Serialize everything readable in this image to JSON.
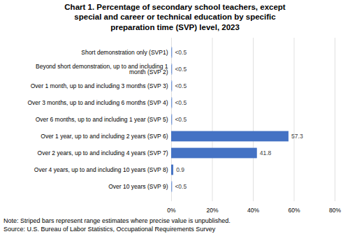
{
  "chart_data": {
    "type": "bar",
    "orientation": "horizontal",
    "title": "Chart 1. Percentage of secondary school teachers, except\nspecial and career or technical education by specific\npreparation time (SVP) level, 2023",
    "categories": [
      "Short demonstration only (SVP1)",
      "Beyond short demonstration, up to and including 1\nmonth (SVP 2)",
      "Over 1 month, up to and including 3 months (SVP 3)",
      "Over 3 months, up to and including 6 months (SVP 4)",
      "Over 6 months, up to and including 1 year (SVP 5)",
      "Over 1 year, up to and including 2 years (SVP 6)",
      "Over 2 years, up to and including 4 years (SVP 7)",
      "Over 4 years, up to and including 10 years (SVP 8)",
      "Over 10 years (SVP 9)"
    ],
    "values": [
      0.3,
      0.3,
      0.3,
      0.3,
      0.3,
      57.3,
      41.8,
      0.9,
      0.3
    ],
    "value_labels": [
      "<0.5",
      "<0.5",
      "<0.5",
      "<0.5",
      "<0.5",
      "57.3",
      "41.8",
      "0.9",
      "<0.5"
    ],
    "data_labels": true,
    "color": "#4472c4",
    "colors": [
      "#ffffff",
      "#ffffff",
      "#ffffff",
      "#ffffff",
      "#ffffff",
      "#4472c4",
      "#4472c4",
      "#4472c4",
      "#ffffff"
    ],
    "xlim": [
      0,
      80
    ],
    "xticks": [
      {
        "value": 0,
        "label": "0%"
      },
      {
        "value": 20,
        "label": "20%"
      },
      {
        "value": 40,
        "label": "40%"
      },
      {
        "value": 60,
        "label": "60%"
      },
      {
        "value": 80,
        "label": "80%"
      }
    ],
    "grid": true,
    "annotations": [
      "Note: Striped bars represent range estimates where precise value is unpublished.",
      "Source: U.S. Bureau of Labor Statistics, Occupational Requirements Survey"
    ]
  }
}
